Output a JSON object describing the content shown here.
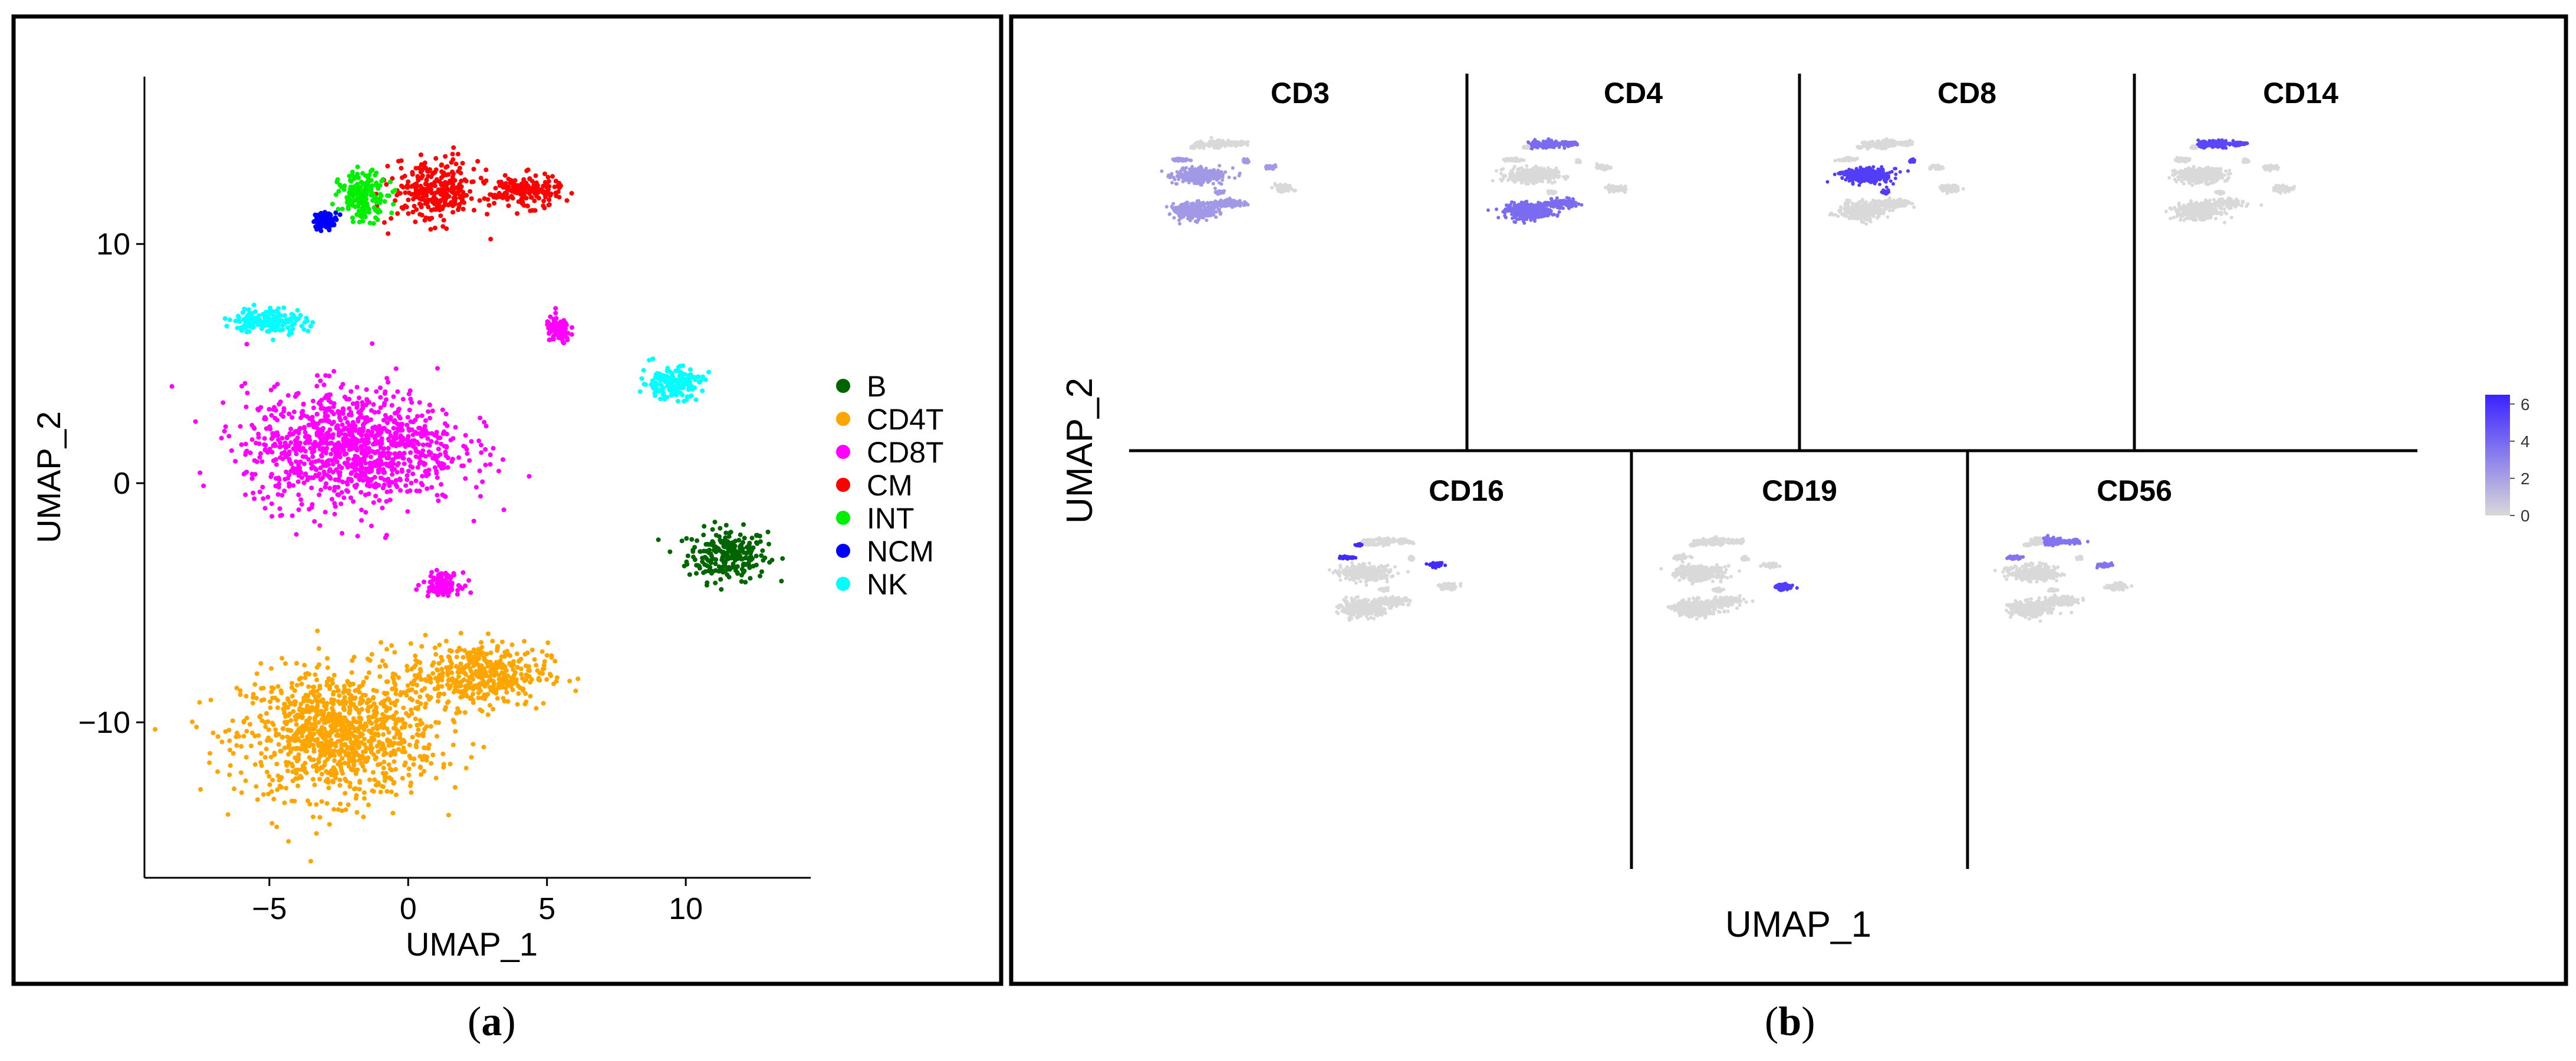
{
  "panel_a_caption": "a",
  "panel_b_caption": "b",
  "chart_data": [
    {
      "type": "scatter",
      "panel": "a",
      "title": "",
      "xlabel": "UMAP_1",
      "ylabel": "UMAP_2",
      "xlim": [
        -9.5,
        14.5
      ],
      "ylim": [
        -16.5,
        17
      ],
      "xticks": [
        -5,
        0,
        5,
        10
      ],
      "yticks": [
        -10,
        0,
        10
      ],
      "xtick_labels": [
        "−5",
        "0",
        "5",
        "10"
      ],
      "ytick_labels": [
        "−10",
        "0",
        "10"
      ],
      "grid": false,
      "legend_position": "right",
      "legend": [
        {
          "name": "B",
          "color": "#006400"
        },
        {
          "name": "CD4T",
          "color": "#FFA500"
        },
        {
          "name": "CD8T",
          "color": "#FF00FF"
        },
        {
          "name": "CM",
          "color": "#FF0000"
        },
        {
          "name": "INT",
          "color": "#00EE00"
        },
        {
          "name": "NCM",
          "color": "#0000FF"
        },
        {
          "name": "NK",
          "color": "#00FFFF"
        }
      ],
      "clusters": [
        {
          "label": "B",
          "color": "#006400",
          "center": [
            11.5,
            -3.0
          ],
          "spread": [
            1.3,
            1.0
          ]
        },
        {
          "label": "CD4T",
          "color": "#FFA500",
          "center": [
            -2.5,
            -10.5
          ],
          "spread": [
            3.2,
            2.4
          ]
        },
        {
          "label": "CD4T",
          "color": "#FFA500",
          "center": [
            2.5,
            -8.0
          ],
          "spread": [
            2.3,
            1.2
          ]
        },
        {
          "label": "CD8T",
          "color": "#FF00FF",
          "center": [
            -2.0,
            1.5
          ],
          "spread": [
            3.5,
            2.2
          ]
        },
        {
          "label": "CD8T",
          "color": "#FF00FF",
          "center": [
            5.4,
            6.4
          ],
          "spread": [
            0.4,
            0.5
          ]
        },
        {
          "label": "CD8T",
          "color": "#FF00FF",
          "center": [
            1.2,
            -4.2
          ],
          "spread": [
            0.6,
            0.4
          ]
        },
        {
          "label": "CM",
          "color": "#FF0000",
          "center": [
            1.0,
            12.2
          ],
          "spread": [
            1.4,
            1.2
          ]
        },
        {
          "label": "CM",
          "color": "#FF0000",
          "center": [
            4.2,
            12.2
          ],
          "spread": [
            1.2,
            0.6
          ]
        },
        {
          "label": "INT",
          "color": "#00EE00",
          "center": [
            -1.6,
            12.0
          ],
          "spread": [
            0.8,
            0.9
          ]
        },
        {
          "label": "NCM",
          "color": "#0000FF",
          "center": [
            -3.0,
            11.0
          ],
          "spread": [
            0.4,
            0.3
          ]
        },
        {
          "label": "NK",
          "color": "#00FFFF",
          "center": [
            -5.0,
            6.8
          ],
          "spread": [
            1.2,
            0.5
          ]
        },
        {
          "label": "NK",
          "color": "#00FFFF",
          "center": [
            9.5,
            4.2
          ],
          "spread": [
            1.0,
            0.6
          ]
        }
      ]
    },
    {
      "type": "scatter",
      "panel": "b",
      "xlabel": "UMAP_1",
      "ylabel": "UMAP_2",
      "colorbar": {
        "ticks": [
          "0",
          "2",
          "4",
          "6"
        ],
        "min": 0,
        "max": 6.5,
        "low_color": "#D9D9D9",
        "high_color": "#3A22FF"
      },
      "feature_plots": [
        {
          "gene": "CD3",
          "high_clusters": [
            "CD4T",
            "CD8T",
            "NK"
          ],
          "level": 0.35
        },
        {
          "gene": "CD4",
          "high_clusters": [
            "CD4T",
            "CM",
            "INT"
          ],
          "level": 0.6
        },
        {
          "gene": "CD8",
          "high_clusters": [
            "CD8T"
          ],
          "level": 0.85
        },
        {
          "gene": "CD14",
          "high_clusters": [
            "CM",
            "INT"
          ],
          "level": 0.8
        },
        {
          "gene": "CD16",
          "high_clusters": [
            "NCM",
            "NK"
          ],
          "level": 0.95
        },
        {
          "gene": "CD19",
          "high_clusters": [
            "B"
          ],
          "level": 0.85
        },
        {
          "gene": "CD56",
          "high_clusters": [
            "NK",
            "CM"
          ],
          "level": 0.55
        }
      ]
    }
  ]
}
